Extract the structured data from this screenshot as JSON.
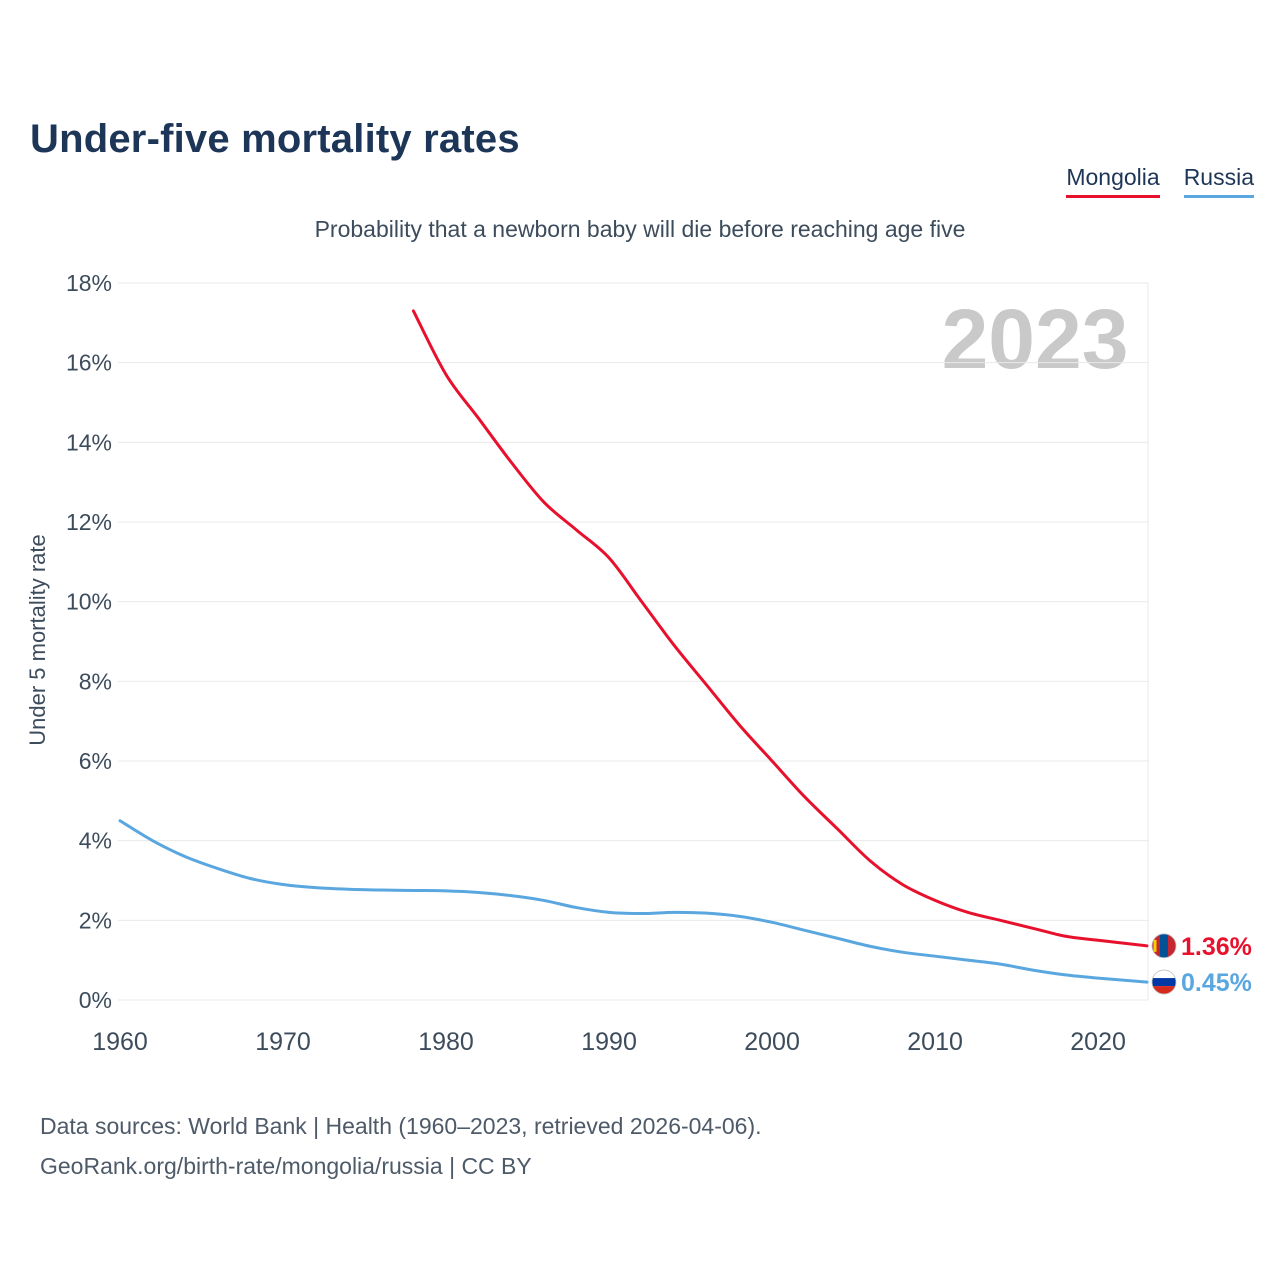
{
  "title": "Under-five mortality rates",
  "subtitle": "Probability that a newborn baby will die before reaching age five",
  "watermark": "2023",
  "legend": [
    {
      "label": "Mongolia",
      "color": "#e8112d"
    },
    {
      "label": "Russia",
      "color": "#5aa7e0"
    }
  ],
  "footer": {
    "line1": "Data sources: World Bank | Health (1960–2023, retrieved 2026-04-06).",
    "line2": "GeoRank.org/birth-rate/mongolia/russia | CC BY"
  },
  "colors": {
    "title": "#1d3557",
    "mongolia": "#e8112d",
    "russia": "#5aa7e0",
    "axis_text": "#3d4c5c",
    "grid": "#e9e9e9",
    "watermark": "#c9c9c9",
    "footer_text": "#4e5a68"
  },
  "chart_data": {
    "type": "line",
    "title": "Under-five mortality rates",
    "subtitle": "Probability that a newborn baby will die before reaching age five",
    "xlabel": "",
    "ylabel": "Under 5 mortality rate",
    "xlim": [
      1960,
      2023
    ],
    "ylim": [
      0,
      18
    ],
    "x_ticks": [
      1960,
      1970,
      1980,
      1990,
      2000,
      2010,
      2020
    ],
    "y_ticks": [
      0,
      2,
      4,
      6,
      8,
      10,
      12,
      14,
      16,
      18
    ],
    "y_tick_suffix": "%",
    "grid": "horizontal",
    "legend_position": "top-right",
    "series": [
      {
        "name": "Mongolia",
        "color": "#e8112d",
        "flag": "mongolia",
        "end_label": "1.36%",
        "points": [
          [
            1978,
            17.3
          ],
          [
            1980,
            15.7
          ],
          [
            1982,
            14.6
          ],
          [
            1984,
            13.5
          ],
          [
            1986,
            12.5
          ],
          [
            1988,
            11.8
          ],
          [
            1990,
            11.1
          ],
          [
            1992,
            10.0
          ],
          [
            1994,
            8.9
          ],
          [
            1996,
            7.9
          ],
          [
            1998,
            6.9
          ],
          [
            2000,
            6.0
          ],
          [
            2002,
            5.1
          ],
          [
            2004,
            4.3
          ],
          [
            2006,
            3.5
          ],
          [
            2008,
            2.9
          ],
          [
            2010,
            2.5
          ],
          [
            2012,
            2.2
          ],
          [
            2014,
            2.0
          ],
          [
            2016,
            1.8
          ],
          [
            2018,
            1.6
          ],
          [
            2020,
            1.5
          ],
          [
            2023,
            1.36
          ]
        ]
      },
      {
        "name": "Russia",
        "color": "#5aa7e0",
        "flag": "russia",
        "end_label": "0.45%",
        "points": [
          [
            1960,
            4.5
          ],
          [
            1962,
            4.0
          ],
          [
            1964,
            3.6
          ],
          [
            1966,
            3.3
          ],
          [
            1968,
            3.05
          ],
          [
            1970,
            2.9
          ],
          [
            1972,
            2.82
          ],
          [
            1974,
            2.78
          ],
          [
            1976,
            2.76
          ],
          [
            1978,
            2.75
          ],
          [
            1980,
            2.74
          ],
          [
            1982,
            2.7
          ],
          [
            1984,
            2.62
          ],
          [
            1986,
            2.5
          ],
          [
            1988,
            2.32
          ],
          [
            1990,
            2.2
          ],
          [
            1992,
            2.17
          ],
          [
            1994,
            2.2
          ],
          [
            1996,
            2.18
          ],
          [
            1998,
            2.1
          ],
          [
            2000,
            1.95
          ],
          [
            2002,
            1.75
          ],
          [
            2004,
            1.55
          ],
          [
            2006,
            1.35
          ],
          [
            2008,
            1.2
          ],
          [
            2010,
            1.1
          ],
          [
            2012,
            1.0
          ],
          [
            2014,
            0.9
          ],
          [
            2016,
            0.75
          ],
          [
            2018,
            0.63
          ],
          [
            2020,
            0.55
          ],
          [
            2023,
            0.45
          ]
        ]
      }
    ]
  }
}
